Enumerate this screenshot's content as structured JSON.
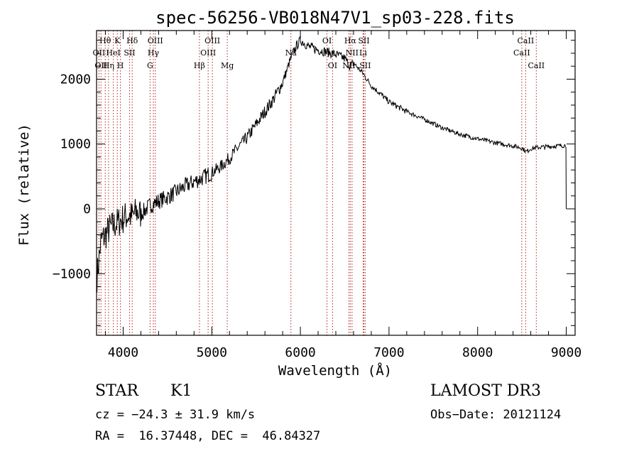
{
  "chart_data": {
    "type": "line",
    "title": "spec-56256-VB018N47V1_sp03-228.fits",
    "xlabel": "Wavelength (Å)",
    "ylabel": "Flux (relative)",
    "xlim": [
      3700,
      9100
    ],
    "ylim": [
      -1950,
      2750
    ],
    "x_ticks": [
      4000,
      5000,
      6000,
      7000,
      8000,
      9000
    ],
    "x_tick_labels": [
      "4000",
      "5000",
      "6000",
      "7000",
      "8000",
      "9000"
    ],
    "y_ticks": [
      -1000,
      0,
      1000,
      2000
    ],
    "y_tick_labels": [
      "−1000",
      "0",
      "1000",
      "2000"
    ],
    "grid": false,
    "series": [
      {
        "name": "flux",
        "color": "#000000",
        "x": [
          3700,
          3750,
          3800,
          3850,
          3900,
          3950,
          4000,
          4050,
          4100,
          4150,
          4200,
          4300,
          4400,
          4500,
          4600,
          4700,
          4800,
          4900,
          5000,
          5100,
          5200,
          5300,
          5400,
          5500,
          5600,
          5700,
          5800,
          5850,
          5900,
          5950,
          6000,
          6050,
          6100,
          6200,
          6300,
          6400,
          6500,
          6560,
          6600,
          6700,
          6800,
          6900,
          7000,
          7200,
          7400,
          7600,
          7800,
          8000,
          8200,
          8400,
          8500,
          8550,
          8600,
          8700,
          8800,
          8900,
          9000
        ],
        "y": [
          -1100,
          -500,
          -400,
          -300,
          -250,
          -200,
          -150,
          -100,
          -120,
          -50,
          -80,
          50,
          120,
          180,
          260,
          350,
          420,
          480,
          560,
          650,
          780,
          950,
          1100,
          1300,
          1500,
          1700,
          1950,
          2150,
          2350,
          2500,
          2600,
          2550,
          2500,
          2450,
          2420,
          2380,
          2320,
          2200,
          2250,
          2100,
          1900,
          1780,
          1650,
          1500,
          1380,
          1250,
          1150,
          1080,
          1020,
          970,
          940,
          880,
          930,
          950,
          960,
          970,
          980
        ]
      }
    ],
    "lines": [
      {
        "wavelength": 3727,
        "label": "OII",
        "row": 1
      },
      {
        "wavelength": 3750,
        "label": "OII",
        "row": 2
      },
      {
        "wavelength": 3798,
        "label": "Hθ",
        "row": 0
      },
      {
        "wavelength": 3835,
        "label": "Hη",
        "row": 2
      },
      {
        "wavelength": 3889,
        "label": "HeI",
        "row": 1
      },
      {
        "wavelength": 3934,
        "label": "K",
        "row": 0
      },
      {
        "wavelength": 3969,
        "label": "H",
        "row": 2
      },
      {
        "wavelength": 4072,
        "label": "SII",
        "row": 1
      },
      {
        "wavelength": 4102,
        "label": "Hδ",
        "row": 0
      },
      {
        "wavelength": 4304,
        "label": "G",
        "row": 2
      },
      {
        "wavelength": 4341,
        "label": "Hγ",
        "row": 1
      },
      {
        "wavelength": 4363,
        "label": "OIII",
        "row": 0
      },
      {
        "wavelength": 4861,
        "label": "Hβ",
        "row": 2
      },
      {
        "wavelength": 4959,
        "label": "OIII",
        "row": 1
      },
      {
        "wavelength": 5007,
        "label": "OIII",
        "row": 0
      },
      {
        "wavelength": 5175,
        "label": "Mg",
        "row": 2
      },
      {
        "wavelength": 5893,
        "label": "Na",
        "row": 1
      },
      {
        "wavelength": 6300,
        "label": "OI",
        "row": 0
      },
      {
        "wavelength": 6363,
        "label": "OI",
        "row": 2
      },
      {
        "wavelength": 6548,
        "label": "NII",
        "row": 2
      },
      {
        "wavelength": 6563,
        "label": "Hα",
        "row": 0
      },
      {
        "wavelength": 6583,
        "label": "NII",
        "row": 1
      },
      {
        "wavelength": 6708,
        "label": "Li",
        "row": 1
      },
      {
        "wavelength": 6716,
        "label": "SII",
        "row": 0
      },
      {
        "wavelength": 6731,
        "label": "SII",
        "row": 2
      },
      {
        "wavelength": 8498,
        "label": "CaII",
        "row": 1
      },
      {
        "wavelength": 8542,
        "label": "CaII",
        "row": 0
      },
      {
        "wavelength": 8662,
        "label": "CaII",
        "row": 2
      }
    ]
  },
  "info": {
    "class_label": "STAR",
    "subclass": "K1",
    "survey": "LAMOST DR3",
    "cz": "cz = −24.3 ± 31.9 km/s",
    "obs_date": "Obs−Date: 20121124",
    "coords": "RA =  16.37448, DEC =  46.84327"
  },
  "colors": {
    "axis": "#000000",
    "line_marker": "#b22222"
  }
}
